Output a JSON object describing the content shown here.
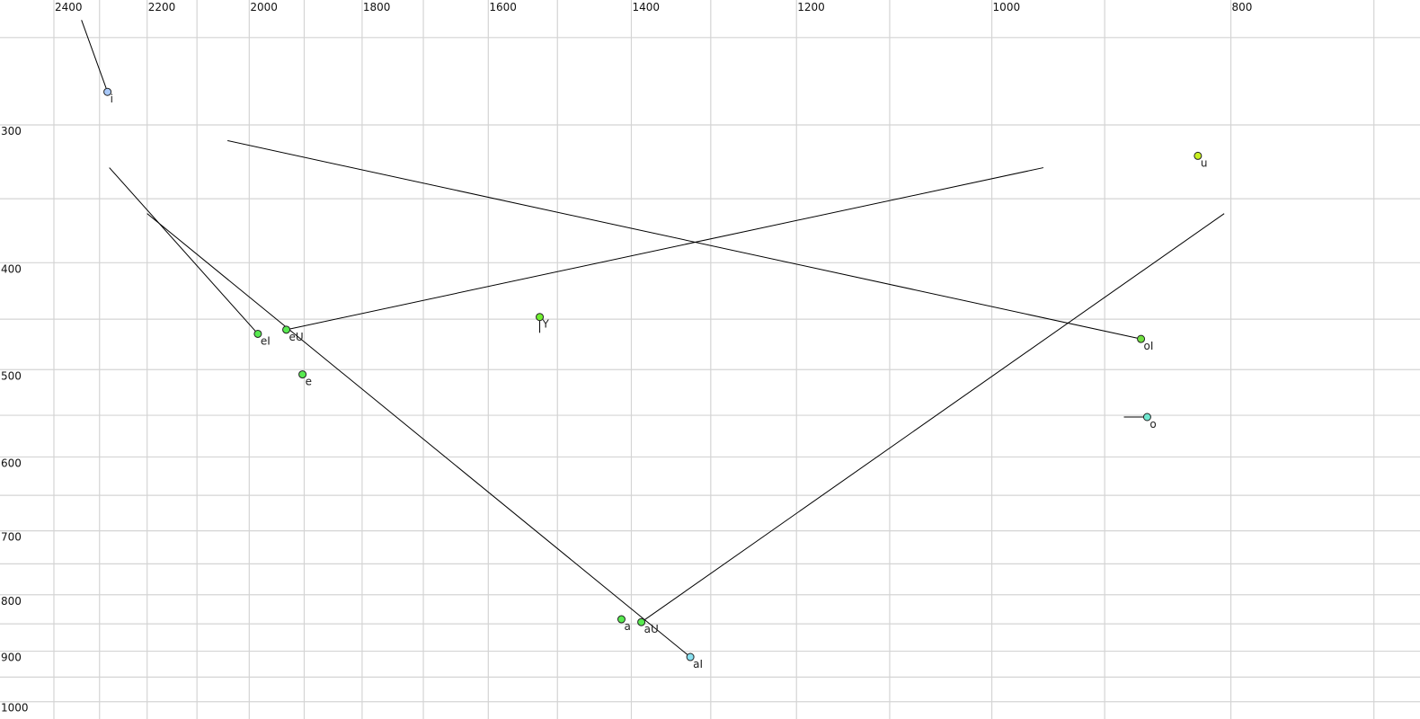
{
  "chart_data": {
    "type": "scatter",
    "title": "",
    "xlabel": "",
    "ylabel": "",
    "x_scale": "log",
    "y_scale": "log",
    "x_reversed": true,
    "x_range": [
      2400,
      680
    ],
    "y_range": [
      232,
      1010
    ],
    "grid": true,
    "x_ticks": [
      2400,
      2200,
      2000,
      1800,
      1600,
      1400,
      1200,
      1000,
      800
    ],
    "y_ticks": [
      300,
      400,
      500,
      600,
      700,
      800,
      900,
      1000
    ],
    "x_grid_step": 100,
    "y_grid_step": 50,
    "points": [
      {
        "label": "i",
        "F2": 2283,
        "F1": 280,
        "color": "#a8c8f8",
        "trail": [
          2339,
          241
        ]
      },
      {
        "label": "u",
        "F2": 825,
        "F1": 320,
        "color": "#c8f020"
      },
      {
        "label": "eU",
        "F2": 1932,
        "F1": 460,
        "color": "#58ea50",
        "trail": [
          953,
          328
        ]
      },
      {
        "label": "eI",
        "F2": 1984,
        "F1": 464,
        "color": "#58ea50",
        "trail": [
          2279,
          328
        ]
      },
      {
        "label": "Y",
        "F2": 1525,
        "F1": 448,
        "color": "#70f030",
        "trail": [
          1525,
          463
        ]
      },
      {
        "label": "oI",
        "F2": 870,
        "F1": 469,
        "color": "#70e040",
        "trail": [
          2041,
          310
        ]
      },
      {
        "label": "e",
        "F2": 1903,
        "F1": 505,
        "color": "#58ea50"
      },
      {
        "label": "o",
        "F2": 865,
        "F1": 552,
        "color": "#70e8d0",
        "trail": [
          884,
          552
        ]
      },
      {
        "label": "a",
        "F2": 1413,
        "F1": 842,
        "color": "#58ea50"
      },
      {
        "label": "aU",
        "F2": 1387,
        "F1": 847,
        "color": "#58ea50",
        "trail": [
          805,
          361
        ]
      },
      {
        "label": "aI",
        "F2": 1325,
        "F1": 911,
        "color": "#88e0f0",
        "trail": [
          2200,
          361
        ]
      }
    ]
  }
}
